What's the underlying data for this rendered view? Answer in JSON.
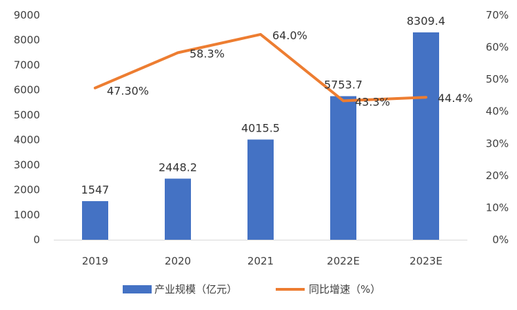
{
  "chart_data": {
    "type": "bar+line",
    "categories": [
      "2019",
      "2020",
      "2021",
      "2022E",
      "2023E"
    ],
    "series": [
      {
        "name": "产业规模（亿元）",
        "type": "bar",
        "axis": "left",
        "color": "#4472C4",
        "values": [
          1547,
          2448.2,
          4015.5,
          5753.7,
          8309.4
        ],
        "labels": [
          "1547",
          "2448.2",
          "4015.5",
          "5753.7",
          "8309.4"
        ]
      },
      {
        "name": "同比增速（%）",
        "type": "line",
        "axis": "right",
        "color": "#ED7D31",
        "values": [
          47.3,
          58.3,
          64.0,
          43.3,
          44.4
        ],
        "labels": [
          "47.30%",
          "58.3%",
          "64.0%",
          "43.3%",
          "44.4%"
        ]
      }
    ],
    "y_left": {
      "ylim": [
        0,
        9000
      ],
      "ticks": [
        0,
        1000,
        2000,
        3000,
        4000,
        5000,
        6000,
        7000,
        8000,
        9000
      ],
      "tick_labels": [
        "0",
        "1000",
        "2000",
        "3000",
        "4000",
        "5000",
        "6000",
        "7000",
        "8000",
        "9000"
      ]
    },
    "y_right": {
      "ylim": [
        0,
        70
      ],
      "ticks": [
        0,
        10,
        20,
        30,
        40,
        50,
        60,
        70
      ],
      "tick_labels": [
        "0%",
        "10%",
        "20%",
        "30%",
        "40%",
        "50%",
        "60%",
        "70%"
      ]
    },
    "legend": [
      {
        "label": "产业规模（亿元）",
        "kind": "bar",
        "color": "#4472C4"
      },
      {
        "label": "同比增速（%）",
        "kind": "line",
        "color": "#ED7D31"
      }
    ],
    "legend_position": "bottom",
    "grid": false
  }
}
